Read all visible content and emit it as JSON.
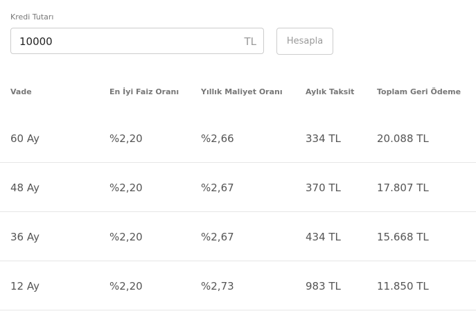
{
  "form": {
    "label": "Kredi Tutarı",
    "value": "10000",
    "unit": "TL",
    "button": "Hesapla"
  },
  "table": {
    "headers": [
      "Vade",
      "En İyi Faiz Oranı",
      "Yıllık Maliyet Oranı",
      "Aylık Taksit",
      "Toplam Geri Ödeme"
    ],
    "rows": [
      [
        "60 Ay",
        "%2,20",
        "%2,66",
        "334 TL",
        "20.088 TL"
      ],
      [
        "48 Ay",
        "%2,20",
        "%2,67",
        "370 TL",
        "17.807 TL"
      ],
      [
        "36 Ay",
        "%2,20",
        "%2,67",
        "434 TL",
        "15.668 TL"
      ],
      [
        "12 Ay",
        "%2,20",
        "%2,73",
        "983 TL",
        "11.850 TL"
      ]
    ]
  }
}
